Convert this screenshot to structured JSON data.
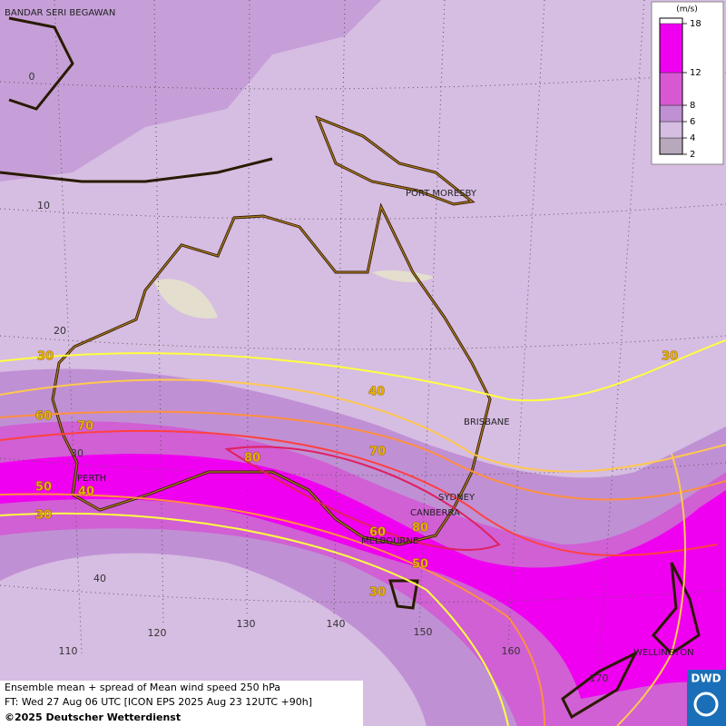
{
  "map": {
    "cities": [
      "BANDAR SERI BEGAWAN",
      "PORT MORESBY",
      "BRISBANE",
      "PERTH",
      "SYDNEY",
      "CANBERRA",
      "MELBOURNE",
      "WELLINGTON"
    ],
    "lat_labels": [
      0,
      10,
      20,
      30,
      40
    ],
    "lon_labels": [
      110,
      120,
      130,
      140,
      150,
      160,
      170
    ],
    "contour_labels": [
      30,
      40,
      60,
      70,
      80,
      70,
      30,
      50,
      40,
      30,
      80,
      60,
      50,
      30
    ]
  },
  "legend": {
    "unit": "(m/s)",
    "ticks": [
      2,
      4,
      6,
      8,
      12,
      18
    ],
    "colors": [
      "#b8a8bc",
      "#d6bde2",
      "#c090d4",
      "#d858d4",
      "#f000f0"
    ]
  },
  "footer": {
    "lines": [
      "Ensemble mean + spread of Mean wind speed 250 hPa",
      "FT: Wed 27 Aug 06 UTC [ICON EPS 2025 Aug 23 12UTC +90h]"
    ],
    "copyright": "©2025 Deutscher Wetterdienst"
  },
  "logo": "DWD"
}
